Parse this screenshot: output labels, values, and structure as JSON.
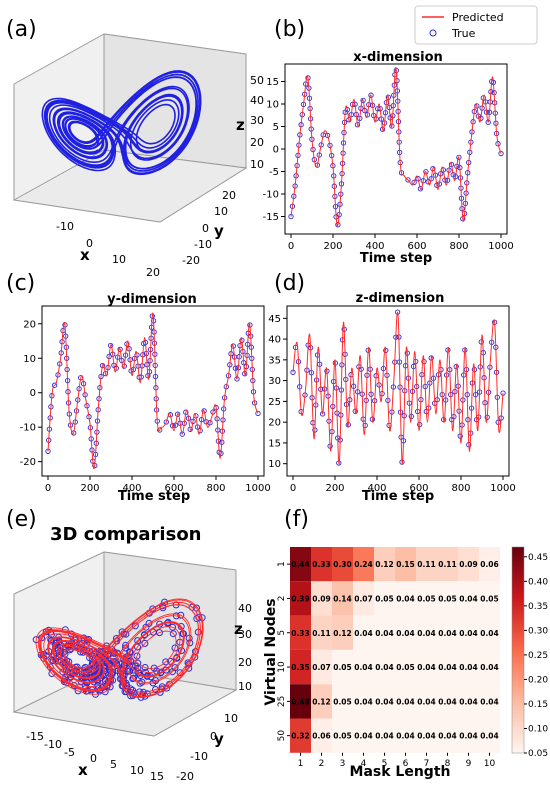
{
  "panels": {
    "a": {
      "label": "(a)"
    },
    "b": {
      "label": "(b)"
    },
    "c": {
      "label": "(c)"
    },
    "d": {
      "label": "(d)"
    },
    "e": {
      "label": "(e)",
      "title": "3D comparison"
    },
    "f": {
      "label": "(f)"
    }
  },
  "legend": {
    "predicted": "Predicted",
    "true": "True"
  },
  "colors": {
    "predicted": "#ff2a2a",
    "true": "#2a2ad8",
    "trajectory": "#2020e0"
  },
  "chart_data": [
    {
      "id": "a",
      "type": "line",
      "title": "",
      "xlabel": "x",
      "ylabel": "y",
      "zlabel": "z",
      "x_ticks": [
        "-10",
        "0",
        "10",
        "20"
      ],
      "y_ticks": [
        "-20",
        "-10",
        "0",
        "10",
        "20"
      ],
      "z_ticks": [
        "10",
        "20",
        "30",
        "40",
        "50"
      ]
    },
    {
      "id": "b",
      "type": "line",
      "title": "x-dimension",
      "xlabel": "Time step",
      "ylabel": "",
      "xlim": [
        0,
        1000
      ],
      "ylim": [
        -18,
        18
      ],
      "x_ticks": [
        "0",
        "200",
        "400",
        "600",
        "800",
        "1000"
      ],
      "y_ticks": [
        "-15",
        "-10",
        "-5",
        "0",
        "5",
        "10",
        "15"
      ],
      "series": [
        {
          "name": "Predicted",
          "x": [
            0,
            20,
            40,
            60,
            80,
            100,
            120,
            140,
            160,
            180,
            200,
            220,
            240,
            260,
            280,
            300,
            320,
            340,
            360,
            380,
            400,
            420,
            440,
            460,
            480,
            500,
            520,
            540,
            560,
            580,
            600,
            620,
            640,
            660,
            680,
            700,
            720,
            740,
            760,
            780,
            800,
            820,
            840,
            860,
            880,
            900,
            920,
            940,
            960,
            980,
            1000
          ],
          "values": [
            -15,
            -8,
            2,
            10,
            16,
            2,
            -4,
            0,
            4,
            2,
            -4,
            -17,
            -8,
            9,
            6,
            11,
            5,
            11,
            7,
            12,
            6,
            10,
            4,
            12,
            5,
            18,
            -3,
            -6,
            -7,
            -8,
            -6,
            -9,
            -5,
            -8,
            -4,
            -9,
            -4,
            -8,
            -3,
            -7,
            -2,
            -16,
            -6,
            3,
            10,
            6,
            12,
            6,
            16,
            3,
            -1
          ]
        },
        {
          "name": "True",
          "x": [
            0,
            20,
            40,
            60,
            80,
            100,
            120,
            140,
            160,
            180,
            200,
            220,
            240,
            260,
            280,
            300,
            320,
            340,
            360,
            380,
            400,
            420,
            440,
            460,
            480,
            500,
            520,
            540,
            560,
            580,
            600,
            620,
            640,
            660,
            680,
            700,
            720,
            740,
            760,
            780,
            800,
            820,
            840,
            860,
            880,
            900,
            920,
            940,
            960,
            980,
            1000
          ],
          "values": [
            -15,
            -8,
            2,
            10,
            16,
            2,
            -4,
            0,
            4,
            2,
            -4,
            -17,
            -8,
            9,
            6,
            11,
            5,
            11,
            7,
            12,
            6,
            10,
            4,
            12,
            5,
            18,
            -3,
            -6,
            -7,
            -8,
            -6,
            -9,
            -5,
            -8,
            -4,
            -9,
            -4,
            -8,
            -3,
            -7,
            -2,
            -16,
            -6,
            3,
            10,
            6,
            12,
            6,
            16,
            3,
            -1
          ]
        }
      ]
    },
    {
      "id": "c",
      "type": "line",
      "title": "y-dimension",
      "xlabel": "Time step",
      "ylabel": "",
      "xlim": [
        0,
        1000
      ],
      "ylim": [
        -23,
        24
      ],
      "x_ticks": [
        "0",
        "200",
        "400",
        "600",
        "800",
        "1000"
      ],
      "y_ticks": [
        "-20",
        "-10",
        "0",
        "10",
        "20"
      ],
      "series": [
        {
          "name": "Predicted",
          "x": [
            0,
            20,
            40,
            60,
            80,
            100,
            120,
            140,
            160,
            180,
            200,
            220,
            240,
            260,
            280,
            300,
            320,
            340,
            360,
            380,
            400,
            420,
            440,
            460,
            480,
            500,
            520,
            540,
            560,
            580,
            600,
            620,
            640,
            660,
            680,
            700,
            720,
            740,
            760,
            780,
            800,
            820,
            840,
            860,
            880,
            900,
            920,
            940,
            960,
            980,
            1000
          ],
          "values": [
            -17,
            0,
            3,
            10,
            20,
            -5,
            -12,
            -3,
            5,
            -2,
            -9,
            -22,
            -4,
            8,
            5,
            14,
            6,
            13,
            7,
            15,
            5,
            12,
            3,
            16,
            4,
            23,
            -8,
            -10,
            -9,
            -6,
            -11,
            -6,
            -12,
            -5,
            -11,
            -6,
            -12,
            -5,
            -10,
            -7,
            -4,
            -19,
            -2,
            5,
            14,
            4,
            16,
            5,
            20,
            -1,
            -6
          ]
        },
        {
          "name": "True",
          "x": [
            0,
            20,
            40,
            60,
            80,
            100,
            120,
            140,
            160,
            180,
            200,
            220,
            240,
            260,
            280,
            300,
            320,
            340,
            360,
            380,
            400,
            420,
            440,
            460,
            480,
            500,
            520,
            540,
            560,
            580,
            600,
            620,
            640,
            660,
            680,
            700,
            720,
            740,
            760,
            780,
            800,
            820,
            840,
            860,
            880,
            900,
            920,
            940,
            960,
            980,
            1000
          ],
          "values": [
            -17,
            0,
            3,
            10,
            20,
            -5,
            -12,
            -3,
            5,
            -2,
            -9,
            -22,
            -4,
            8,
            5,
            14,
            6,
            13,
            7,
            15,
            5,
            12,
            3,
            16,
            4,
            23,
            -8,
            -10,
            -9,
            -6,
            -11,
            -6,
            -12,
            -5,
            -11,
            -6,
            -12,
            -5,
            -10,
            -7,
            -4,
            -19,
            -2,
            5,
            14,
            4,
            16,
            5,
            20,
            -1,
            -6
          ]
        }
      ]
    },
    {
      "id": "d",
      "type": "line",
      "title": "z-dimension",
      "xlabel": "Time step",
      "ylabel": "",
      "xlim": [
        0,
        1000
      ],
      "ylim": [
        8,
        47
      ],
      "x_ticks": [
        "0",
        "200",
        "400",
        "600",
        "800",
        "1000"
      ],
      "y_ticks": [
        "10",
        "15",
        "20",
        "25",
        "30",
        "35",
        "40",
        "45"
      ],
      "series": [
        {
          "name": "Predicted",
          "x": [
            0,
            20,
            40,
            60,
            80,
            100,
            120,
            140,
            160,
            180,
            200,
            220,
            240,
            260,
            280,
            300,
            320,
            340,
            360,
            380,
            400,
            420,
            440,
            460,
            480,
            500,
            520,
            540,
            560,
            580,
            600,
            620,
            640,
            660,
            680,
            700,
            720,
            740,
            760,
            780,
            800,
            820,
            840,
            860,
            880,
            900,
            920,
            940,
            960,
            980,
            1000
          ],
          "values": [
            32,
            39,
            22,
            28,
            41,
            16,
            38,
            22,
            33,
            13,
            35,
            10,
            44,
            19,
            33,
            22,
            36,
            17,
            38,
            20,
            33,
            25,
            38,
            18,
            30,
            46,
            10,
            38,
            20,
            37,
            18,
            36,
            20,
            36,
            22,
            35,
            20,
            38,
            18,
            34,
            15,
            38,
            13,
            34,
            18,
            41,
            20,
            35,
            44,
            18,
            27
          ]
        },
        {
          "name": "True",
          "x": [
            0,
            20,
            40,
            60,
            80,
            100,
            120,
            140,
            160,
            180,
            200,
            220,
            240,
            260,
            280,
            300,
            320,
            340,
            360,
            380,
            400,
            420,
            440,
            460,
            480,
            500,
            520,
            540,
            560,
            580,
            600,
            620,
            640,
            660,
            680,
            700,
            720,
            740,
            760,
            780,
            800,
            820,
            840,
            860,
            880,
            900,
            920,
            940,
            960,
            980,
            1000
          ],
          "values": [
            32,
            39,
            22,
            28,
            41,
            16,
            38,
            22,
            33,
            13,
            35,
            10,
            44,
            19,
            33,
            22,
            36,
            17,
            38,
            20,
            33,
            25,
            38,
            18,
            30,
            46,
            10,
            38,
            20,
            37,
            18,
            36,
            20,
            36,
            22,
            35,
            20,
            38,
            18,
            34,
            15,
            38,
            13,
            34,
            18,
            41,
            20,
            35,
            44,
            18,
            27
          ]
        }
      ]
    },
    {
      "id": "e",
      "type": "scatter",
      "title": "3D comparison",
      "xlabel": "x",
      "ylabel": "y",
      "zlabel": "z",
      "x_ticks": [
        "-15",
        "-10",
        "-5",
        "0",
        "5",
        "10",
        "15"
      ],
      "y_ticks": [
        "-20",
        "-10",
        "0",
        "10"
      ],
      "z_ticks": [
        "10",
        "20",
        "30",
        "40"
      ]
    },
    {
      "id": "f",
      "type": "heatmap",
      "xlabel": "Mask Length",
      "ylabel": "Virtual Nodes",
      "x_categories": [
        "1",
        "2",
        "3",
        "4",
        "5",
        "6",
        "7",
        "8",
        "9",
        "10"
      ],
      "y_categories": [
        "1",
        "2",
        "5",
        "10",
        "25",
        "50"
      ],
      "values": [
        [
          0.44,
          0.33,
          0.3,
          0.24,
          0.12,
          0.15,
          0.11,
          0.11,
          0.09,
          0.06
        ],
        [
          0.39,
          0.09,
          0.14,
          0.07,
          0.05,
          0.04,
          0.05,
          0.05,
          0.04,
          0.05
        ],
        [
          0.33,
          0.11,
          0.12,
          0.04,
          0.04,
          0.04,
          0.04,
          0.04,
          0.04,
          0.04
        ],
        [
          0.35,
          0.07,
          0.05,
          0.04,
          0.04,
          0.05,
          0.04,
          0.04,
          0.04,
          0.04
        ],
        [
          0.48,
          0.12,
          0.05,
          0.04,
          0.04,
          0.04,
          0.04,
          0.04,
          0.04,
          0.04
        ],
        [
          0.32,
          0.06,
          0.05,
          0.04,
          0.04,
          0.04,
          0.04,
          0.04,
          0.04,
          0.04
        ]
      ],
      "value_labels": [
        [
          "0.44",
          "0.33",
          "0.30",
          "0.24",
          "0.12",
          "0.15",
          "0.11",
          "0.11",
          "0.09",
          "0.06"
        ],
        [
          "0.39",
          "0.09",
          "0.14",
          "0.07",
          "0.05",
          "0.04",
          "0.05",
          "0.05",
          "0.04",
          "0.05"
        ],
        [
          "0.33",
          "0.11",
          "0.12",
          "0.04",
          "0.04",
          "0.04",
          "0.04",
          "0.04",
          "0.04",
          "0.04"
        ],
        [
          "0.35",
          "0.07",
          "0.05",
          "0.04",
          "0.04",
          "0.05",
          "0.04",
          "0.04",
          "0.04",
          "0.04"
        ],
        [
          "0.48",
          "0.12",
          "0.05",
          "0.04",
          "0.04",
          "0.04",
          "0.04",
          "0.04",
          "0.04",
          "0.04"
        ],
        [
          "0.32",
          "0.06",
          "0.05",
          "0.04",
          "0.04",
          "0.04",
          "0.04",
          "0.04",
          "0.04",
          "0.04"
        ]
      ],
      "colorbar_range": [
        0.05,
        0.47
      ],
      "colorbar_ticks": [
        "0.45",
        "0.40",
        "0.35",
        "0.30",
        "0.25",
        "0.20",
        "0.15",
        "0.10",
        "0.05"
      ],
      "colorbar_tick_values": [
        0.45,
        0.4,
        0.35,
        0.3,
        0.25,
        0.2,
        0.15,
        0.1,
        0.05
      ]
    }
  ]
}
